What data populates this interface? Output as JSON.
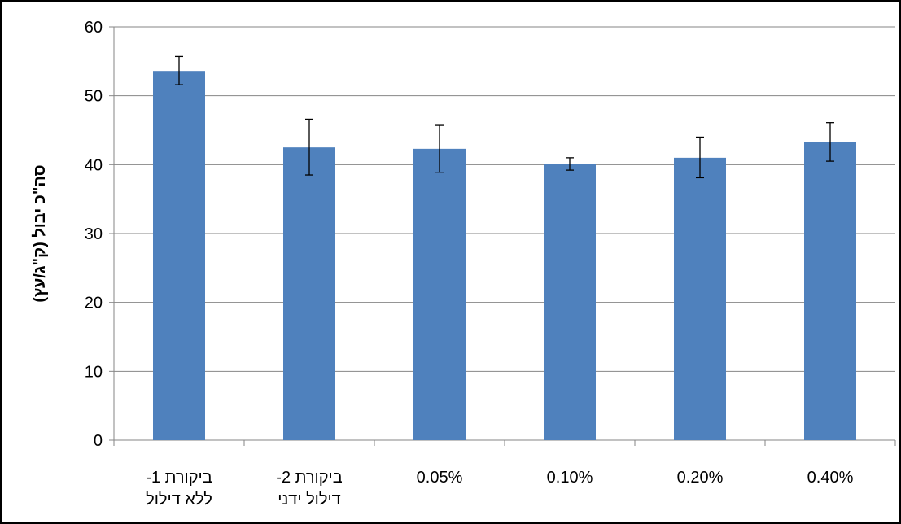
{
  "chart_data": {
    "type": "bar",
    "title": "",
    "xlabel": "",
    "ylabel": "סה\"כ יבול (ק\"ג/עץ)",
    "categories": [
      [
        "ביקורת 1-",
        "ללא דילול"
      ],
      [
        "ביקורת 2-",
        "דילול ידני"
      ],
      [
        "0.05%"
      ],
      [
        "0.10%"
      ],
      [
        "0.20%"
      ],
      [
        "0.40%"
      ]
    ],
    "values": [
      53.6,
      42.5,
      42.3,
      40.1,
      41.0,
      43.3
    ],
    "error_low": [
      51.6,
      38.5,
      38.9,
      39.2,
      38.1,
      40.5
    ],
    "error_high": [
      55.7,
      46.6,
      45.7,
      41.0,
      44.0,
      46.1
    ],
    "ylim": [
      0,
      60
    ],
    "yticks": [
      0,
      10,
      20,
      30,
      40,
      50,
      60
    ],
    "grid": true,
    "bar_color": "#4f81bd",
    "grid_color": "#868686"
  }
}
